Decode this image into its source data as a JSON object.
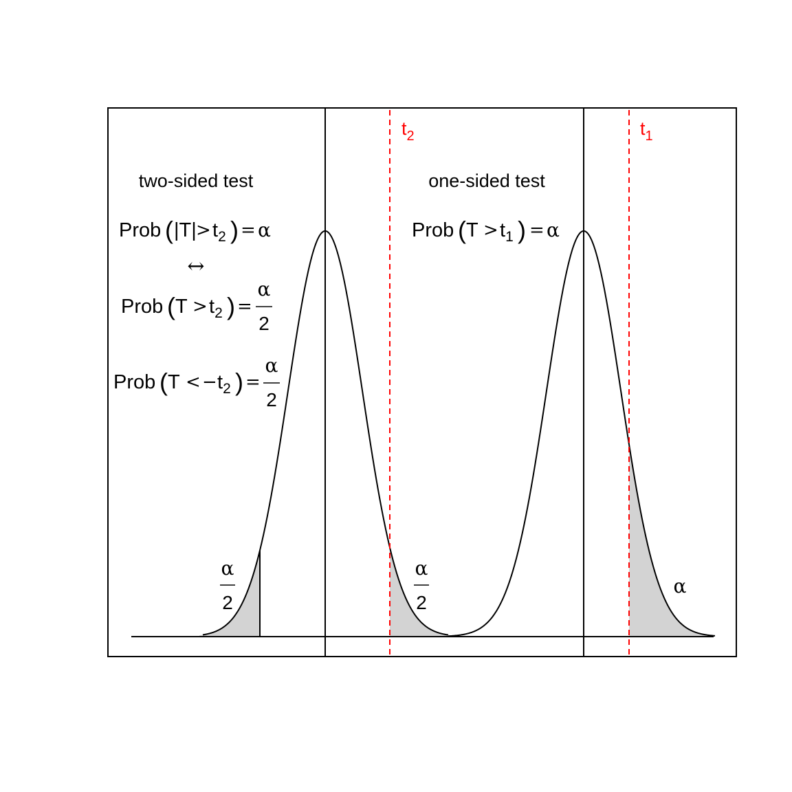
{
  "colors": {
    "critical_line": "#ff0000",
    "shaded_area": "#d3d3d3",
    "curve": "#000000",
    "frame": "#000000"
  },
  "labels": {
    "t2": "t",
    "t2_sub": "2",
    "t1": "t",
    "t1_sub": "1",
    "two_sided_title": "two-sided test",
    "one_sided_title": "one-sided test",
    "prob": "Prob",
    "abs_T": "|T|",
    "T": "T",
    "gt": ">",
    "lt": "<",
    "minus": "−",
    "eq": "=",
    "alpha": "α",
    "two": "2",
    "t": "t",
    "sub2": "2",
    "sub1": "1",
    "iff": "↔",
    "paren_open": "(",
    "paren_close": ")"
  }
}
